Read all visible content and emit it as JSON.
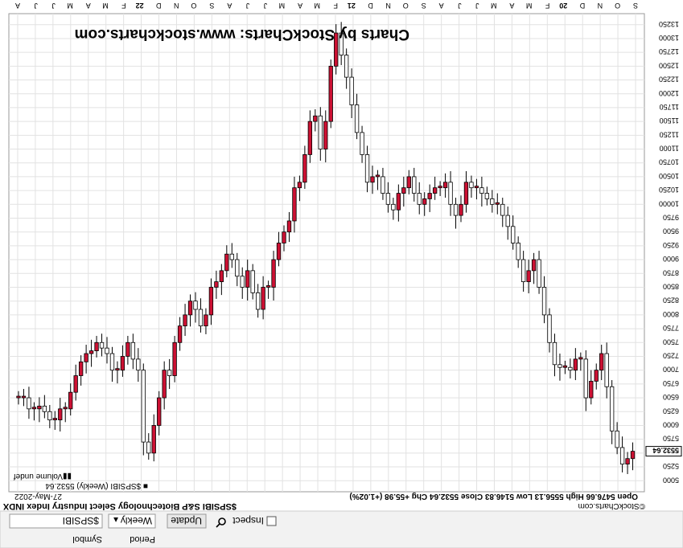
{
  "controls": {
    "symbol_label": "Symbol",
    "symbol_value": "$SPSIBI",
    "period_label": "Period",
    "period_value": "Weekly",
    "update_label": "Update",
    "inspect_label": "Inspect"
  },
  "header": {
    "symbol_title": "$SPSIBI S&P Biotechnology Select Industry Index INDX",
    "date": "27-May-2022",
    "ohlc": "Open 5476.66  High 5556.13  Low 5146.83  Close 5532.64  Chg +55.98 (+1.02%)",
    "copyright": "©StockCharts.com"
  },
  "legend": {
    "series": "■ $SPSIBI (Weekly) 5532.64",
    "volume": "▮▮Volume undef"
  },
  "watermark": "Charts by StockCharts:  www.stockcharts.com",
  "colors": {
    "up": "#ffffff",
    "down": "#cc1133",
    "grid": "#e2e2e2",
    "price_tag": "#ffffff"
  },
  "chart_data": {
    "type": "candlestick",
    "orientation": "rendered rotated 180°",
    "y_ticks": [
      5000,
      5250,
      5500,
      5750,
      6000,
      6250,
      6500,
      6750,
      7000,
      7250,
      7500,
      7750,
      8000,
      8250,
      8500,
      8750,
      9000,
      9250,
      9500,
      9750,
      10000,
      10250,
      10500,
      10750,
      11000,
      11250,
      11500,
      11750,
      12000,
      12250,
      12500,
      12750,
      13000,
      13250
    ],
    "y_tick_labels": [
      "5000",
      "5250",
      "5500",
      "5750",
      "6000",
      "6250",
      "6500",
      "6750",
      "7000",
      "7250",
      "7500",
      "7750",
      "8000",
      "8250",
      "8500",
      "8750",
      "9000",
      "9250",
      "9500",
      "9750",
      "10000",
      "10250",
      "10500",
      "10750",
      "11000",
      "11250",
      "11500",
      "11750",
      "12000",
      "12250",
      "12500",
      "12750",
      "13000",
      "13250"
    ],
    "ylim": [
      4800,
      13450
    ],
    "last_price_label": "5532.64",
    "x_tick_labels": [
      "S",
      "O",
      "N",
      "D",
      "20",
      "F",
      "M",
      "A",
      "M",
      "J",
      "J",
      "A",
      "S",
      "O",
      "N",
      "D",
      "21",
      "F",
      "M",
      "A",
      "M",
      "J",
      "J",
      "A",
      "S",
      "O",
      "N",
      "D",
      "22",
      "F",
      "M",
      "A",
      "M",
      "J",
      "J",
      "A"
    ],
    "bold_ticks": [
      "20",
      "21",
      "22"
    ],
    "close_values": [
      6500,
      6500,
      6300,
      6300,
      6350,
      6250,
      6100,
      6100,
      6300,
      6300,
      6600,
      6900,
      7150,
      7300,
      7350,
      7500,
      7400,
      7300,
      7000,
      7000,
      7250,
      7500,
      7200,
      7000,
      5700,
      5500,
      6000,
      6500,
      7000,
      6900,
      7500,
      7800,
      8000,
      8250,
      8100,
      7800,
      8000,
      8500,
      8600,
      8800,
      9100,
      9000,
      8700,
      8500,
      8800,
      8400,
      8100,
      8500,
      8500,
      9000,
      9300,
      9500,
      9700,
      10300,
      10400,
      10900,
      11500,
      11600,
      11000,
      11500,
      12500,
      13100,
      12700,
      12300,
      11800,
      11300,
      10900,
      10400,
      10500,
      10500,
      10200,
      10000,
      9900,
      10200,
      10300,
      10500,
      10200,
      10000,
      10100,
      10200,
      10300,
      10300,
      10400,
      10000,
      9800,
      10000,
      10400,
      10300,
      10300,
      10200,
      10100,
      10000,
      10000,
      9800,
      9600,
      9300,
      9000,
      8600,
      8800,
      9000,
      8500,
      8000,
      7500,
      7100,
      7050,
      7050,
      7000,
      7200,
      7200,
      6500,
      6800,
      7000,
      7300,
      6700,
      5900,
      5600,
      5300,
      5400,
      5532.64
    ]
  }
}
